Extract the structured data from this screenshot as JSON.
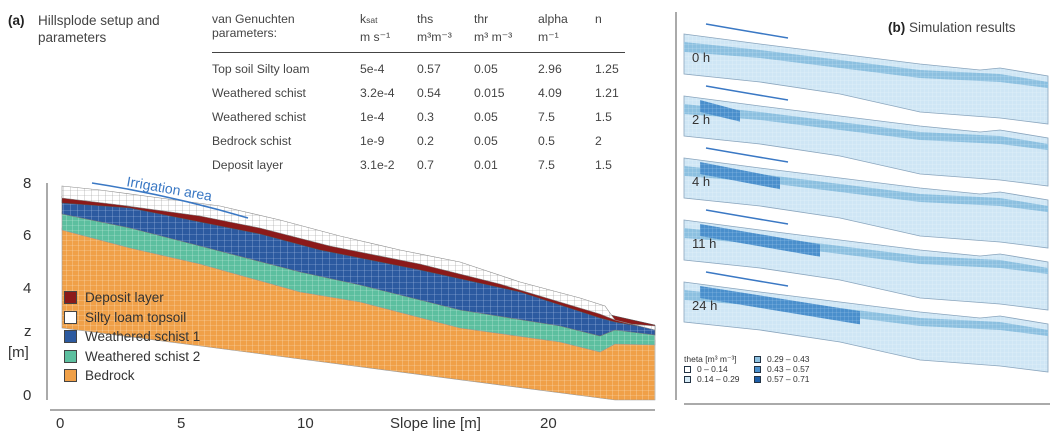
{
  "panel_a": {
    "letter": "(a)",
    "title": "Hillsplode setup and parameters"
  },
  "panel_b": {
    "letter": "(b)",
    "title": "Simulation results"
  },
  "table": {
    "headers": [
      "van Genuchten parameters:",
      "ksat",
      "ths",
      "thr",
      "alpha",
      "n"
    ],
    "ksat_sub": "sat",
    "units": [
      "",
      "m s⁻¹",
      "m³m⁻³",
      "m³ m⁻³",
      "m⁻¹",
      ""
    ],
    "rows": [
      [
        "Top soil Silty loam",
        "5e-4",
        "0.57",
        "0.05",
        "2.96",
        "1.25"
      ],
      [
        "Weathered schist",
        "3.2e-4",
        "0.54",
        "0.015",
        "4.09",
        "1.21"
      ],
      [
        "Weathered schist",
        "1e-4",
        "0.3",
        "0.05",
        "7.5",
        "1.5"
      ],
      [
        "Bedrock schist",
        "1e-9",
        "0.2",
        "0.05",
        "0.5",
        "2"
      ],
      [
        "Deposit layer",
        "3.1e-2",
        "0.7",
        "0.01",
        "7.5",
        "1.5"
      ]
    ]
  },
  "mesh_plot": {
    "irrigation_label": "Irrigation area",
    "x_axis_label": "Slope line [m]",
    "x_ticks": [
      "0",
      "5",
      "10",
      "20"
    ],
    "y_ticks": [
      "8",
      "6",
      "4",
      "0"
    ],
    "y_label_z": "z",
    "y_label_unit": "[m]"
  },
  "layer_legend": [
    {
      "label": "Deposit layer",
      "color": "#8b1a1a"
    },
    {
      "label": "Silty loam topsoil",
      "color": "#ffffff"
    },
    {
      "label": "Weathered schist 1",
      "color": "#2c5aa0"
    },
    {
      "label": "Weathered schist 2",
      "color": "#5cbf9f"
    },
    {
      "label": "Bedrock",
      "color": "#f0a048"
    }
  ],
  "time_labels": [
    "0 h",
    "2 h",
    "4 h",
    "11 h",
    "24 h"
  ],
  "theta_legend": {
    "title": "theta [m³ m⁻³]",
    "items": [
      {
        "label": "0 – 0.14",
        "color": "#ffffff"
      },
      {
        "label": "0.29 – 0.43",
        "color": "#8cc0e0"
      },
      {
        "label": "0.14 – 0.29",
        "color": "#d6ebf7"
      },
      {
        "label": "0.43 – 0.57",
        "color": "#4a8fcc"
      },
      {
        "label": "0.57 – 0.71",
        "color": "#1f5fa8"
      }
    ]
  }
}
